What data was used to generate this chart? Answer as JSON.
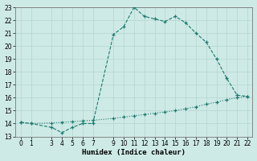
{
  "title": "",
  "xlabel": "Humidex (Indice chaleur)",
  "ylabel": "",
  "bg_color": "#ceeae6",
  "grid_color": "#b8d8d4",
  "line_color": "#1a7a6e",
  "xlim": [
    -0.5,
    22.5
  ],
  "ylim": [
    13,
    23
  ],
  "yticks": [
    13,
    14,
    15,
    16,
    17,
    18,
    19,
    20,
    21,
    22,
    23
  ],
  "xticks": [
    0,
    1,
    3,
    4,
    5,
    6,
    7,
    9,
    10,
    11,
    12,
    13,
    14,
    15,
    16,
    17,
    18,
    19,
    20,
    21,
    22
  ],
  "curve1_x": [
    0,
    1,
    3,
    4,
    5,
    6,
    7,
    9,
    10,
    11,
    12,
    13,
    14,
    15,
    16,
    17,
    18,
    19,
    20,
    21,
    22
  ],
  "curve1_y": [
    14.1,
    14.0,
    13.7,
    13.3,
    13.7,
    14.0,
    14.0,
    20.9,
    21.5,
    23.0,
    22.3,
    22.1,
    21.9,
    22.3,
    21.8,
    21.0,
    20.3,
    19.0,
    17.5,
    16.2,
    16.1
  ],
  "curve2_x": [
    0,
    1,
    3,
    4,
    5,
    6,
    7,
    9,
    10,
    11,
    12,
    13,
    14,
    15,
    16,
    17,
    18,
    19,
    20,
    21,
    22
  ],
  "curve2_y": [
    14.1,
    14.0,
    14.05,
    14.1,
    14.15,
    14.2,
    14.25,
    14.4,
    14.5,
    14.6,
    14.7,
    14.8,
    14.9,
    15.0,
    15.15,
    15.3,
    15.5,
    15.65,
    15.85,
    16.0,
    16.1
  ],
  "marker": "+",
  "markersize": 3,
  "linewidth": 0.8
}
